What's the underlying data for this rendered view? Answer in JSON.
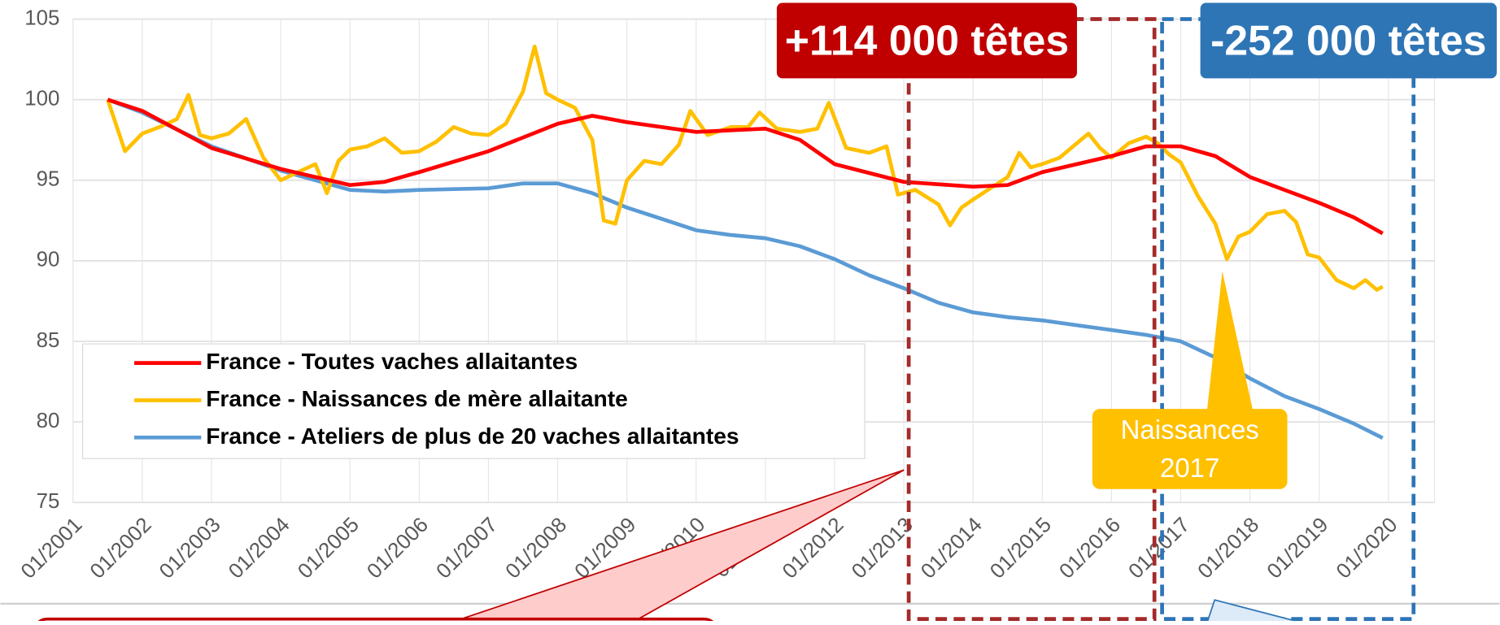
{
  "chart_data": {
    "type": "line",
    "xticks": [
      "01/2001",
      "01/2002",
      "01/2003",
      "01/2004",
      "01/2005",
      "01/2006",
      "01/2007",
      "01/2008",
      "01/2009",
      "01/2010",
      "01/2011",
      "01/2012",
      "01/2013",
      "01/2014",
      "01/2015",
      "01/2016",
      "01/2017",
      "01/2018",
      "01/2019",
      "01/2020"
    ],
    "xlim": [
      "01/2001",
      "09/2020"
    ],
    "ylim": [
      75,
      105
    ],
    "yticks": [
      75,
      80,
      85,
      90,
      95,
      100,
      105
    ],
    "grid": true,
    "legend": "bottom-left",
    "annotations": [
      "+114 000 têtes",
      "-252 000 têtes",
      "Naissances",
      "2017"
    ],
    "series": [
      {
        "name": "France - Toutes vaches allaitantes",
        "color": "#ff0000",
        "x": [
          "07/2001",
          "01/2002",
          "01/2003",
          "01/2004",
          "01/2005",
          "07/2005",
          "01/2006",
          "01/2007",
          "01/2008",
          "07/2008",
          "01/2009",
          "01/2010",
          "01/2011",
          "07/2011",
          "01/2012",
          "01/2013",
          "01/2014",
          "07/2014",
          "01/2015",
          "01/2016",
          "07/2016",
          "01/2017",
          "07/2017",
          "01/2018",
          "07/2018",
          "01/2019",
          "07/2019",
          "12/2019"
        ],
        "values": [
          100,
          99.3,
          97,
          95.7,
          94.7,
          94.9,
          95.5,
          96.8,
          98.5,
          99,
          98.6,
          98,
          98.2,
          97.5,
          96,
          94.9,
          94.6,
          94.7,
          95.5,
          96.5,
          97.1,
          97.1,
          96.5,
          95.2,
          94.4,
          93.6,
          92.7,
          91.7
        ]
      },
      {
        "name": "France - Naissances de mère allaitante",
        "color": "#ffc000",
        "x": [
          "07/2001",
          "10/2001",
          "01/2002",
          "04/2002",
          "07/2002",
          "09/2002",
          "11/2002",
          "01/2003",
          "04/2003",
          "07/2003",
          "10/2003",
          "01/2004",
          "04/2004",
          "07/2004",
          "09/2004",
          "11/2004",
          "01/2005",
          "04/2005",
          "07/2005",
          "10/2005",
          "01/2006",
          "04/2006",
          "07/2006",
          "10/2006",
          "01/2007",
          "04/2007",
          "07/2007",
          "09/2007",
          "11/2007",
          "01/2008",
          "04/2008",
          "07/2008",
          "09/2008",
          "11/2008",
          "01/2009",
          "04/2009",
          "07/2009",
          "10/2009",
          "12/2009",
          "03/2010",
          "07/2010",
          "10/2010",
          "12/2010",
          "03/2011",
          "07/2011",
          "10/2011",
          "12/2011",
          "03/2012",
          "07/2012",
          "10/2012",
          "12/2012",
          "03/2013",
          "07/2013",
          "09/2013",
          "11/2013",
          "01/2014",
          "04/2014",
          "07/2014",
          "09/2014",
          "11/2014",
          "01/2015",
          "04/2015",
          "07/2015",
          "09/2015",
          "11/2015",
          "01/2016",
          "04/2016",
          "07/2016",
          "09/2016",
          "11/2016",
          "01/2017",
          "04/2017",
          "07/2017",
          "09/2017",
          "11/2017",
          "01/2018",
          "04/2018",
          "07/2018",
          "09/2018",
          "11/2018",
          "01/2019",
          "04/2019",
          "07/2019",
          "09/2019",
          "11/2019",
          "12/2019"
        ],
        "values": [
          100,
          96.8,
          97.9,
          98.3,
          98.8,
          100.3,
          97.8,
          97.6,
          97.9,
          98.8,
          96.4,
          95,
          95.5,
          96,
          94.2,
          96.2,
          96.9,
          97.1,
          97.6,
          96.7,
          96.8,
          97.4,
          98.3,
          97.9,
          97.8,
          98.5,
          100.5,
          103.3,
          100.4,
          100,
          99.5,
          97.5,
          92.5,
          92.3,
          95,
          96.2,
          96,
          97.2,
          99.3,
          97.8,
          98.3,
          98.3,
          99.2,
          98.2,
          98,
          98.2,
          99.8,
          97,
          96.7,
          97.1,
          94.1,
          94.4,
          93.5,
          92.2,
          93.3,
          93.8,
          94.5,
          95.2,
          96.7,
          95.8,
          96,
          96.4,
          97.3,
          97.9,
          97,
          96.4,
          97.3,
          97.7,
          97.3,
          96.6,
          96.1,
          94,
          92.3,
          90.1,
          91.5,
          91.8,
          92.9,
          93.1,
          92.4,
          90.4,
          90.2,
          88.8,
          88.3,
          88.8,
          88.2,
          88.4
        ]
      },
      {
        "name": "France - Ateliers de plus de 20 vaches allaitantes",
        "color": "#5b9bd5",
        "x": [
          "07/2001",
          "01/2002",
          "01/2003",
          "01/2004",
          "07/2004",
          "01/2005",
          "07/2005",
          "01/2006",
          "01/2007",
          "07/2007",
          "01/2008",
          "07/2008",
          "01/2009",
          "07/2009",
          "01/2010",
          "07/2010",
          "01/2011",
          "07/2011",
          "01/2012",
          "07/2012",
          "01/2013",
          "07/2013",
          "01/2014",
          "07/2014",
          "01/2015",
          "07/2015",
          "01/2016",
          "07/2016",
          "01/2017",
          "07/2017",
          "01/2018",
          "07/2018",
          "01/2019",
          "07/2019",
          "12/2019"
        ],
        "values": [
          100,
          99.2,
          97.1,
          95.6,
          95,
          94.4,
          94.3,
          94.4,
          94.5,
          94.8,
          94.8,
          94.2,
          93.3,
          92.6,
          91.9,
          91.6,
          91.4,
          90.9,
          90.1,
          89.1,
          88.3,
          87.4,
          86.8,
          86.5,
          86.3,
          86,
          85.7,
          85.4,
          85,
          84,
          82.7,
          81.6,
          80.8,
          79.9,
          79
        ]
      }
    ]
  }
}
